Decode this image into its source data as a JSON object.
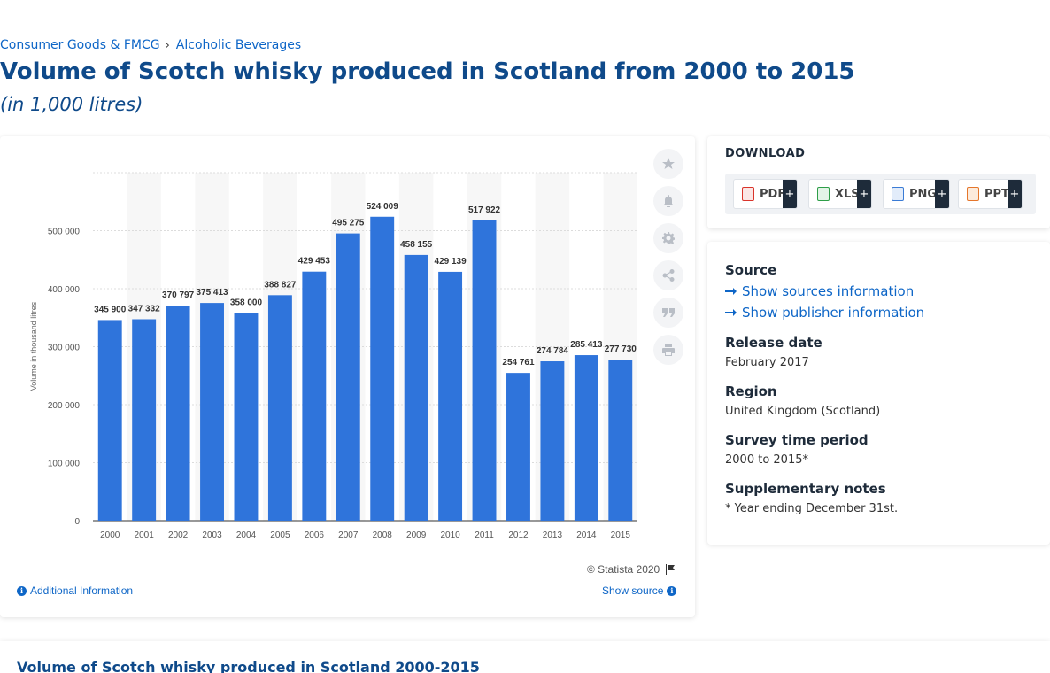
{
  "breadcrumb": {
    "items": [
      "Consumer Goods & FMCG",
      "Alcoholic Beverages"
    ],
    "separator": "›"
  },
  "page": {
    "title": "Volume of Scotch whisky produced in Scotland from 2000 to 2015",
    "subtitle": "(in 1,000 litres)"
  },
  "chart_data": {
    "type": "bar",
    "categories": [
      "2000",
      "2001",
      "2002",
      "2003",
      "2004",
      "2005",
      "2006",
      "2007",
      "2008",
      "2009",
      "2010",
      "2011",
      "2012",
      "2013",
      "2014",
      "2015"
    ],
    "values": [
      345900,
      347332,
      370797,
      375413,
      358000,
      388827,
      429453,
      495275,
      524009,
      458155,
      429139,
      517922,
      254761,
      274784,
      285413,
      277730
    ],
    "data_labels": [
      "345 900",
      "347 332",
      "370 797",
      "375 413",
      "358 000",
      "388 827",
      "429 453",
      "495 275",
      "524 009",
      "458 155",
      "429 139",
      "517 922",
      "254 761",
      "274 784",
      "285 413",
      "277 730"
    ],
    "ylabel": "Volume in thousand litres",
    "xlabel": "",
    "yticks": [
      0,
      100000,
      200000,
      300000,
      400000,
      500000
    ],
    "ytick_labels": [
      "0",
      "100 000",
      "200 000",
      "300 000",
      "400 000",
      "500 000"
    ],
    "ylim": [
      0,
      600000
    ],
    "bar_color": "#2f74db",
    "grid": true,
    "legend": "none"
  },
  "chart_footer": {
    "copyright": "© Statista 2020",
    "additional_info": "Additional Information",
    "show_source": "Show source"
  },
  "tools": [
    "star-icon",
    "bell-icon",
    "gear-icon",
    "share-icon",
    "quote-icon",
    "print-icon"
  ],
  "download": {
    "title": "DOWNLOAD",
    "buttons": [
      {
        "label": "PDF",
        "icon": "pdf-file-icon",
        "color": "#d9342b"
      },
      {
        "label": "XLS",
        "icon": "xls-file-icon",
        "color": "#2e9e48"
      },
      {
        "label": "PNG",
        "icon": "png-file-icon",
        "color": "#3a7bd5"
      },
      {
        "label": "PPT",
        "icon": "ppt-file-icon",
        "color": "#e5762b"
      }
    ],
    "plus": "+"
  },
  "meta": {
    "source_label": "Source",
    "show_sources": "Show sources information",
    "show_publisher": "Show publisher information",
    "release_label": "Release date",
    "release_value": "February 2017",
    "region_label": "Region",
    "region_value": "United Kingdom (Scotland)",
    "survey_label": "Survey time period",
    "survey_value": "2000 to 2015*",
    "supp_label": "Supplementary notes",
    "supp_value": "* Year ending December 31st."
  },
  "bottom": {
    "title": "Volume of Scotch whisky produced in Scotland 2000-2015"
  }
}
